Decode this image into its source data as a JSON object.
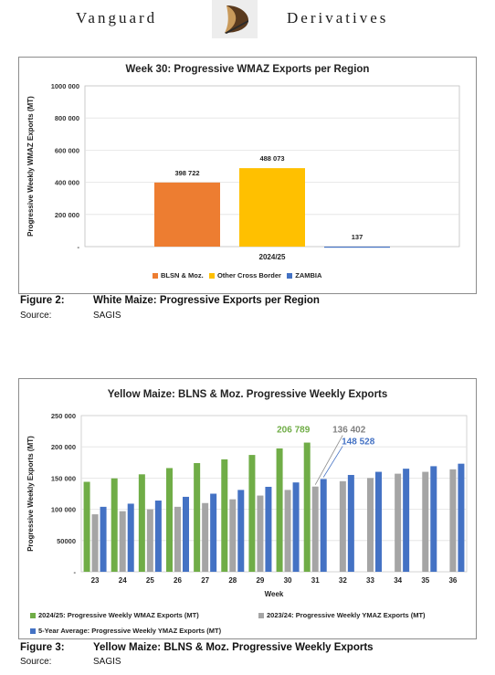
{
  "header": {
    "brand_left": "Vanguard",
    "brand_right": "Derivatives"
  },
  "figures": [
    {
      "label": "Figure 2:",
      "caption": "White Maize: Progressive Exports per Region",
      "source_label": "Source:",
      "source": "SAGIS"
    },
    {
      "label": "Figure 3:",
      "caption": "Yellow Maize: BLNS & Moz. Progressive Weekly Exports",
      "source_label": "Source:",
      "source": "SAGIS"
    }
  ],
  "chart_data": [
    {
      "type": "bar",
      "title": "Week 30: Progressive WMAZ Exports per Region",
      "xlabel": "",
      "ylabel": "Progressive Weekly WMAZ Exports (MT)",
      "ylim": [
        0,
        1000000
      ],
      "y_ticks": [
        "-",
        "200 000",
        "400 000",
        "600 000",
        "800 000",
        "1000 000"
      ],
      "categories": [
        "2024/25"
      ],
      "series": [
        {
          "name": "BLSN & Moz.",
          "values": [
            398722
          ],
          "label": "398 722",
          "color": "#ED7D31"
        },
        {
          "name": "Other Cross Border",
          "values": [
            488073
          ],
          "label": "488 073",
          "color": "#FFC000"
        },
        {
          "name": "ZAMBIA",
          "values": [
            137
          ],
          "label": "137",
          "color": "#4472C4"
        }
      ],
      "grid": true,
      "legend_position": "bottom"
    },
    {
      "type": "bar",
      "title": "Yellow Maize: BLNS & Moz. Progressive Weekly Exports",
      "xlabel": "Week",
      "ylabel": "Progressive Weekly Exports (MT)",
      "ylim": [
        0,
        250000
      ],
      "y_ticks": [
        "-",
        "50000",
        "100 000",
        "150 000",
        "200 000",
        "250 000"
      ],
      "categories": [
        "23",
        "24",
        "25",
        "26",
        "27",
        "28",
        "29",
        "30",
        "31",
        "32",
        "33",
        "34",
        "35",
        "36"
      ],
      "series": [
        {
          "name": "2024/25: Progressive Weekly WMAZ Exports (MT)",
          "color": "#70AD47",
          "values": [
            144000,
            149500,
            156000,
            166000,
            174000,
            180000,
            187000,
            197500,
            206789,
            null,
            null,
            null,
            null,
            null
          ]
        },
        {
          "name": "2023/24: Progressive Weekly YMAZ Exports (MT)",
          "color": "#A5A5A5",
          "values": [
            92000,
            97000,
            100000,
            104000,
            110000,
            116000,
            122000,
            131000,
            136402,
            145000,
            150000,
            157000,
            160000,
            164000
          ]
        },
        {
          "name": "5-Year Average: Progressive Weekly YMAZ Exports (MT)",
          "color": "#4472C4",
          "values": [
            104000,
            109000,
            114000,
            120000,
            125000,
            131000,
            136000,
            143000,
            148528,
            155000,
            160000,
            165000,
            169000,
            173000
          ]
        }
      ],
      "annotations": [
        {
          "text": "206 789",
          "color": "#70AD47"
        },
        {
          "text": "136 402",
          "color": "#808080"
        },
        {
          "text": "148 528",
          "color": "#4472C4"
        }
      ],
      "grid": true,
      "legend_position": "bottom"
    }
  ]
}
